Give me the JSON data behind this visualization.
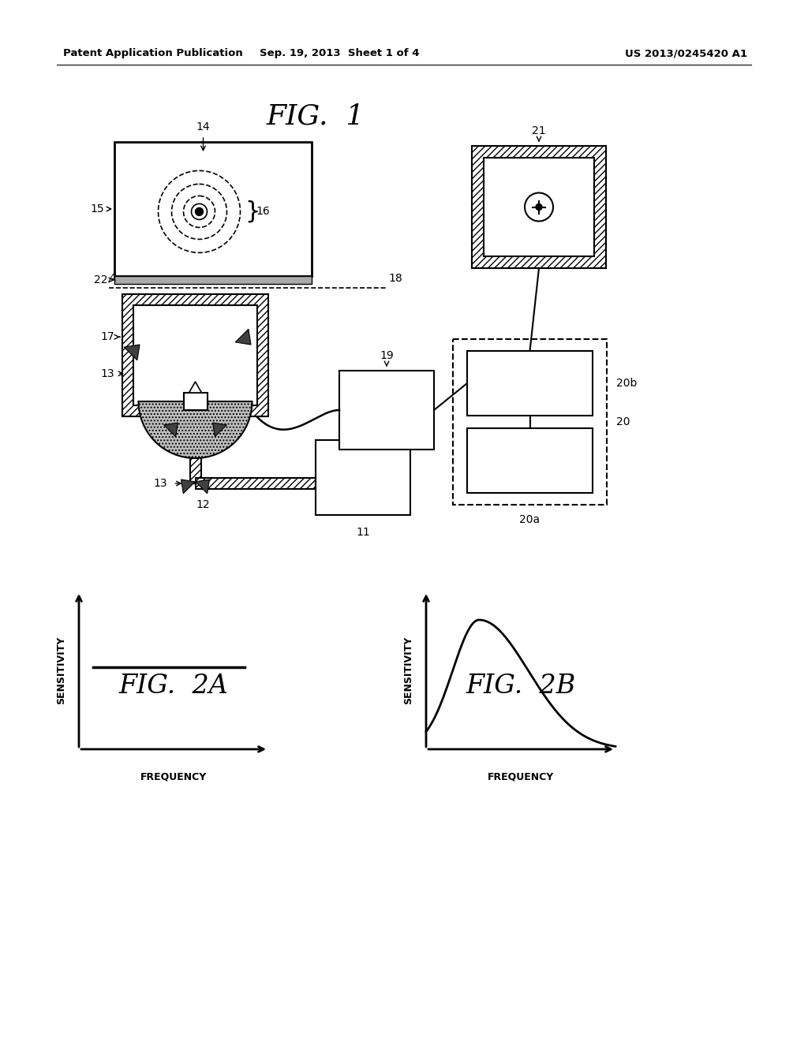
{
  "bg_color": "#ffffff",
  "header_left": "Patent Application Publication",
  "header_mid": "Sep. 19, 2013  Sheet 1 of 4",
  "header_right": "US 2013/0245420 A1",
  "fig1_title": "FIG.  1",
  "fig2a_title": "FIG.  2A",
  "fig2b_title": "FIG.  2B",
  "fig2a_xlabel": "FREQUENCY",
  "fig2a_ylabel": "SENSITIVITY",
  "fig2b_xlabel": "FREQUENCY",
  "fig2b_ylabel": "SENSITIVITY"
}
